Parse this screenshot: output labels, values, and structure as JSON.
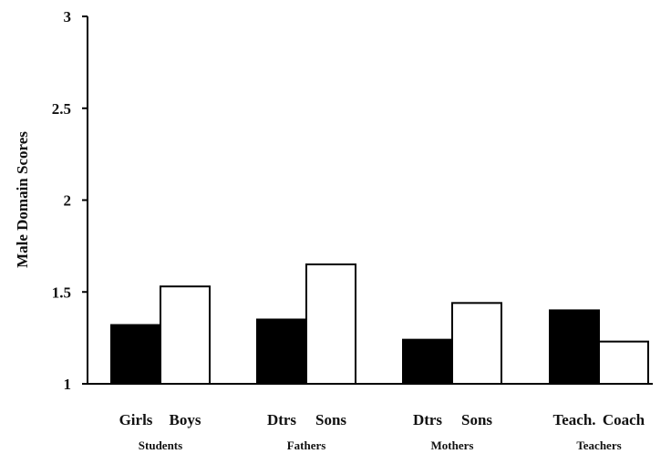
{
  "chart_data": {
    "type": "bar",
    "title": "",
    "xlabel": "",
    "ylabel": "Male Domain Scores",
    "ylim": [
      1,
      3
    ],
    "yticks": [
      "1",
      "1.5",
      "2",
      "2.5",
      "3"
    ],
    "grid": false,
    "legend": "none",
    "groups": [
      {
        "name": "Students",
        "bars": [
          {
            "label": "Girls",
            "value": 1.32,
            "fill": "#000000"
          },
          {
            "label": "Boys",
            "value": 1.53,
            "fill": "#ffffff"
          }
        ]
      },
      {
        "name": "Fathers",
        "bars": [
          {
            "label": "Dtrs",
            "value": 1.35,
            "fill": "#000000"
          },
          {
            "label": "Sons",
            "value": 1.65,
            "fill": "#ffffff"
          }
        ]
      },
      {
        "name": "Mothers",
        "bars": [
          {
            "label": "Dtrs",
            "value": 1.24,
            "fill": "#000000"
          },
          {
            "label": "Sons",
            "value": 1.44,
            "fill": "#ffffff"
          }
        ]
      },
      {
        "name": "Teachers",
        "bars": [
          {
            "label": "Teach.",
            "value": 1.4,
            "fill": "#000000"
          },
          {
            "label": "Coach",
            "value": 1.23,
            "fill": "#ffffff"
          }
        ]
      }
    ]
  }
}
